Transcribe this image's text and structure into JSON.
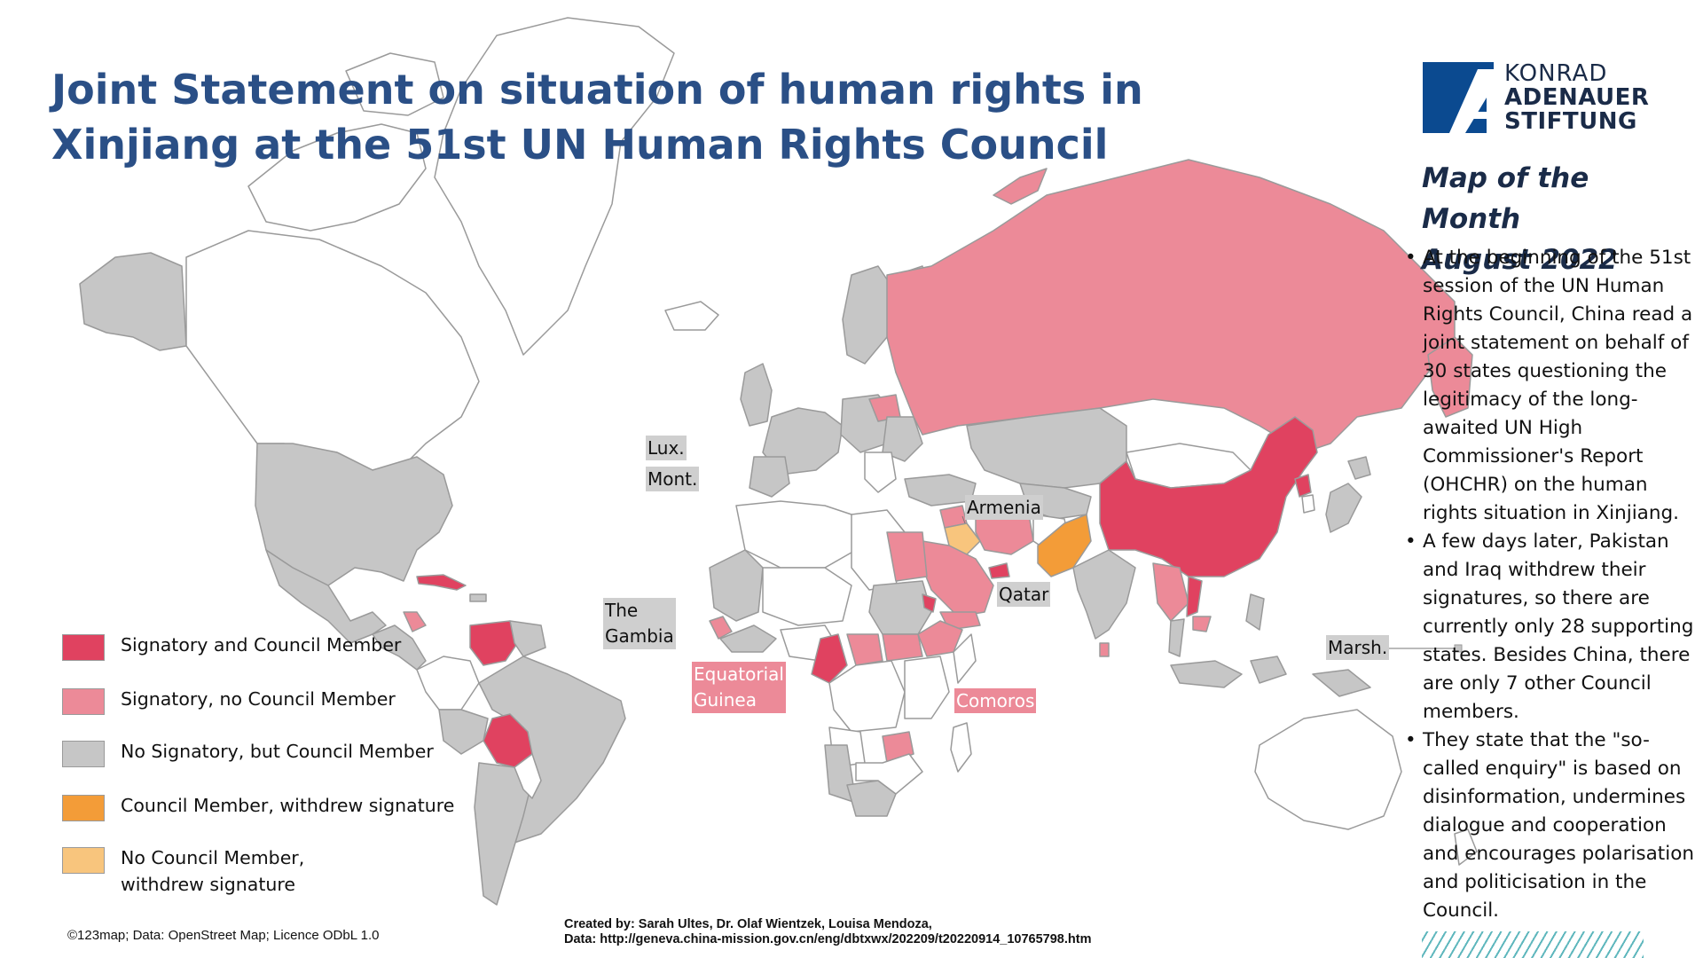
{
  "title": "Joint Statement on situation of human rights in Xinjiang at the 51st UN Human Rights Council",
  "logo": {
    "line1": "KONRAD",
    "line2": "ADENAUER",
    "line3": "STIFTUNG",
    "color": "#0b4a90"
  },
  "map_of_month": {
    "line1": "Map of the Month",
    "line2": "August 2022"
  },
  "bullets": [
    "At the beginning of the 51st session of the UN Human Rights Council, China read a joint statement on behalf of 30 states questioning the legitimacy of the long-awaited UN High Commissioner's Report (OHCHR) on the human rights situation in Xinjiang.",
    "A few days later, Pakistan and Iraq withdrew their signatures, so there are currently only 28 supporting states. Besides China, there are only 7 other Council members.",
    "They state that the \"so-called enquiry\" is based on disinformation, undermines dialogue and cooperation and encourages polarisation and politicisation in the Council."
  ],
  "legend": [
    {
      "label": "Signatory and Council Member",
      "color": "#e04260"
    },
    {
      "label": "Signatory, no Council Member",
      "color": "#ec8a98"
    },
    {
      "label": "No Signatory, but Council Member",
      "color": "#c6c6c6"
    },
    {
      "label": "Council Member, withdrew signature",
      "color": "#f39c38"
    },
    {
      "label": "No Council Member, withdrew signature",
      "line1": "No Council Member,",
      "line2": "withdrew signature",
      "color": "#f8c57d"
    }
  ],
  "map_labels": {
    "lux": "Lux.",
    "mont": "Mont.",
    "armenia": "Armenia",
    "qatar": "Qatar",
    "gambia_line1": "The",
    "gambia_line2": "Gambia",
    "eq_guinea_line1": "Equatorial",
    "eq_guinea_line2": "Guinea",
    "comoros": "Comoros",
    "marsh": "Marsh."
  },
  "credit": "©123map; Data: OpenStreet Map; Licence ODbL 1.0",
  "source": {
    "line1": "Created by: Sarah Ultes, Dr. Olaf Wientzek, Louisa Mendoza,",
    "line2": "Data: http://geneva.china-mission.gov.cn/eng/dbtxwx/202209/t20220914_10765798.htm"
  },
  "colors": {
    "signatory_member": "#e04260",
    "signatory_non_member": "#ec8a98",
    "member_non_signatory": "#c6c6c6",
    "member_withdrew": "#f39c38",
    "non_member_withdrew": "#f8c57d",
    "other": "#ffffff",
    "border": "#9a9a9a",
    "title": "#2a4f86"
  }
}
